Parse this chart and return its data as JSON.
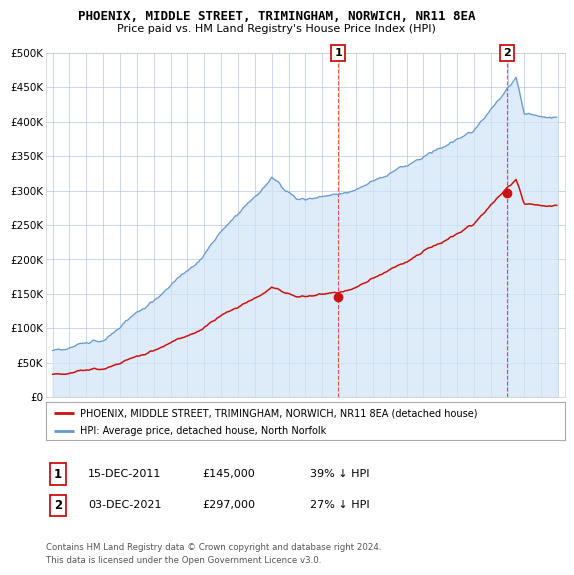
{
  "title": "PHOENIX, MIDDLE STREET, TRIMINGHAM, NORWICH, NR11 8EA",
  "subtitle": "Price paid vs. HM Land Registry's House Price Index (HPI)",
  "background_color": "#ffffff",
  "plot_bg_color": "#ffffff",
  "hpi_color": "#6699cc",
  "hpi_fill_color": "#d0e4f7",
  "price_color": "#cc1111",
  "sale1_date_label": "15-DEC-2011",
  "sale1_price": 145000,
  "sale1_price_label": "£145,000",
  "sale1_hpi_label": "39% ↓ HPI",
  "sale2_date_label": "03-DEC-2021",
  "sale2_price": 297000,
  "sale2_price_label": "£297,000",
  "sale2_hpi_label": "27% ↓ HPI",
  "legend_label_price": "PHOENIX, MIDDLE STREET, TRIMINGHAM, NORWICH, NR11 8EA (detached house)",
  "legend_label_hpi": "HPI: Average price, detached house, North Norfolk",
  "footer": "Contains HM Land Registry data © Crown copyright and database right 2024.\nThis data is licensed under the Open Government Licence v3.0.",
  "ylim": [
    0,
    500000
  ],
  "yticks": [
    0,
    50000,
    100000,
    150000,
    200000,
    250000,
    300000,
    350000,
    400000,
    450000,
    500000
  ],
  "sale1_year": 2011.958,
  "sale2_year": 2021.958
}
